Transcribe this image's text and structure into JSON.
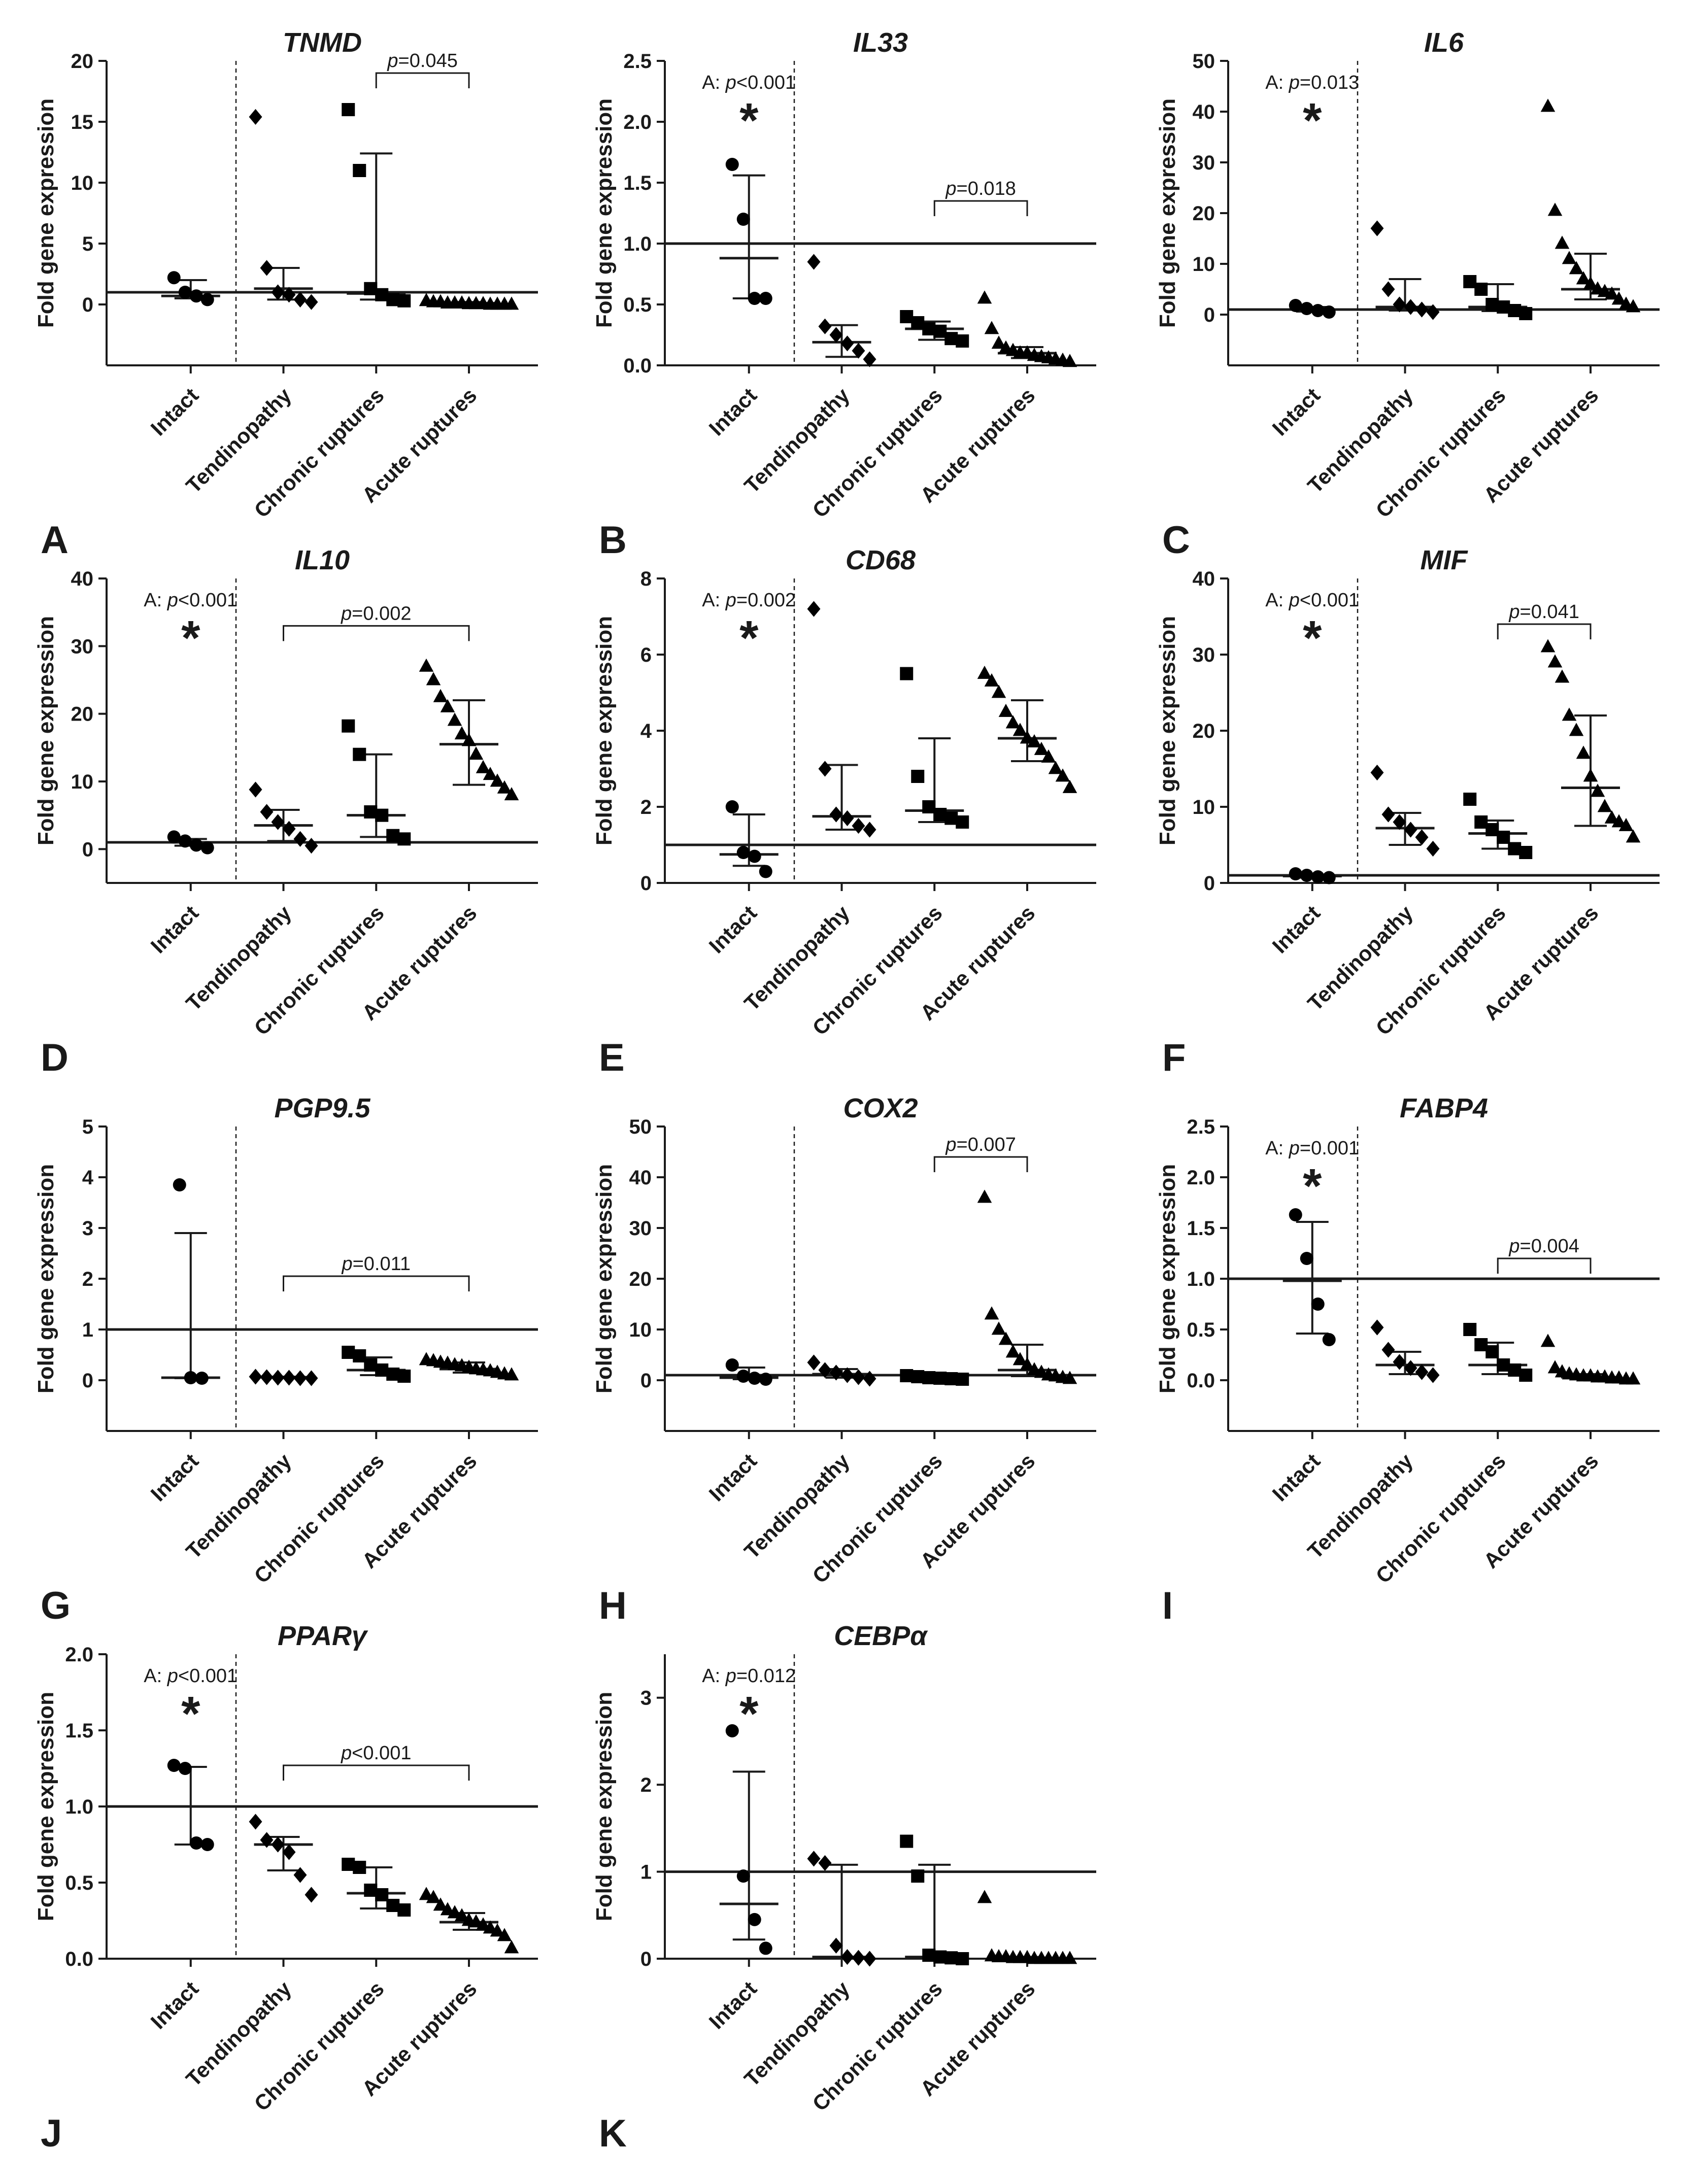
{
  "figure": {
    "ylabel": "Fold gene expression",
    "categories": [
      "Intact",
      "Tendinopathy",
      "Chronic ruptures",
      "Acute ruptures"
    ]
  },
  "chart_data": [
    {
      "panel": "A",
      "type": "scatter",
      "title": "TNMD",
      "ylim": [
        -5,
        20
      ],
      "yticks": [
        0,
        5,
        10,
        15,
        20
      ],
      "ytick_labels": [
        "0",
        "5",
        "10",
        "15",
        "20"
      ],
      "reference_line": 1,
      "anova": null,
      "bracket": {
        "from": 2,
        "to": 3,
        "label": "=0.045",
        "y": 19
      },
      "groups": [
        {
          "points": [
            2.2,
            1.0,
            0.7,
            0.4
          ],
          "median": 0.7,
          "q1": 0.5,
          "q3": 2.0
        },
        {
          "points": [
            15.4,
            3.0,
            1.0,
            0.8,
            0.4,
            0.2
          ],
          "median": 1.3,
          "q1": 0.4,
          "q3": 3.0
        },
        {
          "points": [
            16.0,
            11.0,
            1.3,
            0.8,
            0.4,
            0.3
          ],
          "median": 0.9,
          "q1": 0.4,
          "q3": 12.4
        },
        {
          "points": [
            0.3,
            0.2,
            0.2,
            0.1,
            0.1,
            0.1,
            0.05,
            0.05,
            0.05,
            0.0,
            0.0,
            0.0,
            0.0
          ],
          "median": 0.1,
          "q1": 0.0,
          "q3": 0.2
        }
      ]
    },
    {
      "panel": "B",
      "type": "scatter",
      "title": "IL33",
      "ylim": [
        0,
        2.5
      ],
      "yticks": [
        0,
        0.5,
        1.0,
        1.5,
        2.0,
        2.5
      ],
      "ytick_labels": [
        "0.0",
        "0.5",
        "1.0",
        "1.5",
        "2.0",
        "2.5"
      ],
      "reference_line": 1,
      "anova": "<0.001",
      "bracket": {
        "from": 2,
        "to": 3,
        "label": "=0.018",
        "y": 1.35
      },
      "groups": [
        {
          "points": [
            1.65,
            1.2,
            0.55,
            0.55
          ],
          "median": 0.88,
          "q1": 0.55,
          "q3": 1.56
        },
        {
          "points": [
            0.85,
            0.32,
            0.25,
            0.18,
            0.12,
            0.05
          ],
          "median": 0.19,
          "q1": 0.07,
          "q3": 0.33
        },
        {
          "points": [
            0.4,
            0.35,
            0.3,
            0.28,
            0.22,
            0.2
          ],
          "median": 0.3,
          "q1": 0.21,
          "q3": 0.36
        },
        {
          "points": [
            0.55,
            0.3,
            0.18,
            0.14,
            0.12,
            0.1,
            0.1,
            0.08,
            0.07,
            0.06,
            0.05,
            0.04,
            0.03
          ],
          "median": 0.1,
          "q1": 0.06,
          "q3": 0.15
        }
      ]
    },
    {
      "panel": "C",
      "type": "scatter",
      "title": "IL6",
      "ylim": [
        -10,
        50
      ],
      "yticks": [
        0,
        10,
        20,
        30,
        40,
        50
      ],
      "ytick_labels": [
        "0",
        "10",
        "20",
        "30",
        "40",
        "50"
      ],
      "reference_line": 1,
      "anova": "=0.013",
      "bracket": null,
      "groups": [
        {
          "points": [
            1.8,
            1.2,
            0.8,
            0.5
          ],
          "median": 1.0,
          "q1": 0.6,
          "q3": 1.5
        },
        {
          "points": [
            17.0,
            5.0,
            2.0,
            1.5,
            1.0,
            0.5
          ],
          "median": 1.5,
          "q1": 0.8,
          "q3": 7.0
        },
        {
          "points": [
            6.5,
            5.0,
            2.0,
            1.5,
            0.8,
            0.2
          ],
          "median": 1.5,
          "q1": 0.7,
          "q3": 6.0
        },
        {
          "points": [
            41.0,
            20.5,
            14.0,
            11.0,
            9.0,
            7.0,
            6.0,
            5.0,
            4.5,
            4.0,
            3.0,
            2.0,
            1.5
          ],
          "median": 5.0,
          "q1": 3.0,
          "q3": 12.0
        }
      ]
    },
    {
      "panel": "D",
      "type": "scatter",
      "title": "IL10",
      "ylim": [
        -5,
        40
      ],
      "yticks": [
        0,
        10,
        20,
        30,
        40
      ],
      "ytick_labels": [
        "0",
        "10",
        "20",
        "30",
        "40"
      ],
      "reference_line": 1,
      "anova": "<0.001",
      "bracket": {
        "from": 1,
        "to": 3,
        "label": "=0.002",
        "y": 33
      },
      "groups": [
        {
          "points": [
            1.8,
            1.2,
            0.6,
            0.2
          ],
          "median": 1.0,
          "q1": 0.5,
          "q3": 1.5
        },
        {
          "points": [
            8.8,
            5.5,
            4.0,
            3.0,
            1.5,
            0.5
          ],
          "median": 3.5,
          "q1": 1.2,
          "q3": 5.8
        },
        {
          "points": [
            18.2,
            14.0,
            5.5,
            5.0,
            2.0,
            1.5
          ],
          "median": 5.0,
          "q1": 1.8,
          "q3": 14.0
        },
        {
          "points": [
            27.0,
            25.0,
            22.5,
            21.0,
            19.0,
            17.0,
            16.0,
            14.0,
            12.0,
            11.0,
            10.0,
            9.0,
            8.0
          ],
          "median": 15.5,
          "q1": 9.5,
          "q3": 22.0
        }
      ]
    },
    {
      "panel": "E",
      "type": "scatter",
      "title": "CD68",
      "ylim": [
        0,
        8
      ],
      "yticks": [
        0,
        2,
        4,
        6,
        8
      ],
      "ytick_labels": [
        "0",
        "2",
        "4",
        "6",
        "8"
      ],
      "reference_line": 1,
      "anova": "=0.002",
      "bracket": null,
      "groups": [
        {
          "points": [
            2.0,
            0.8,
            0.7,
            0.3
          ],
          "median": 0.75,
          "q1": 0.45,
          "q3": 1.8
        },
        {
          "points": [
            7.2,
            3.0,
            1.8,
            1.7,
            1.5,
            1.4
          ],
          "median": 1.75,
          "q1": 1.4,
          "q3": 3.1
        },
        {
          "points": [
            5.5,
            2.8,
            2.0,
            1.8,
            1.7,
            1.6
          ],
          "median": 1.9,
          "q1": 1.6,
          "q3": 3.8
        },
        {
          "points": [
            5.5,
            5.3,
            5.0,
            4.5,
            4.2,
            4.0,
            3.8,
            3.7,
            3.5,
            3.3,
            3.0,
            2.8,
            2.5
          ],
          "median": 3.8,
          "q1": 3.2,
          "q3": 4.8
        }
      ]
    },
    {
      "panel": "F",
      "type": "scatter",
      "title": "MIF",
      "ylim": [
        0,
        40
      ],
      "yticks": [
        0,
        10,
        20,
        30,
        40
      ],
      "ytick_labels": [
        "0",
        "10",
        "20",
        "30",
        "40"
      ],
      "reference_line": 1,
      "anova": "<0.001",
      "bracket": {
        "from": 2,
        "to": 3,
        "label": "=0.041",
        "y": 34
      },
      "groups": [
        {
          "points": [
            1.2,
            1.0,
            0.8,
            0.7
          ],
          "median": 0.9,
          "q1": 0.7,
          "q3": 1.1
        },
        {
          "points": [
            14.5,
            9.0,
            8.0,
            7.0,
            6.0,
            4.5
          ],
          "median": 7.2,
          "q1": 5.0,
          "q3": 9.2
        },
        {
          "points": [
            11.0,
            8.0,
            7.0,
            6.0,
            4.5,
            4.0
          ],
          "median": 6.5,
          "q1": 4.5,
          "q3": 8.2
        },
        {
          "points": [
            31.0,
            29.0,
            27.0,
            22.0,
            20.0,
            17.0,
            14.0,
            12.0,
            10.0,
            8.5,
            8.0,
            7.5,
            6.0
          ],
          "median": 12.5,
          "q1": 7.5,
          "q3": 22.0
        }
      ]
    },
    {
      "panel": "G",
      "type": "scatter",
      "title": "PGP9.5",
      "ylim": [
        -1,
        5
      ],
      "yticks": [
        0,
        1,
        2,
        3,
        4,
        5
      ],
      "ytick_labels": [
        "0",
        "1",
        "2",
        "3",
        "4",
        "5"
      ],
      "reference_line": 1,
      "anova": null,
      "bracket": {
        "from": 1,
        "to": 3,
        "label": "=0.011",
        "y": 2.05
      },
      "groups": [
        {
          "points": [
            3.85,
            0.05,
            0.04
          ],
          "median": 0.05,
          "q1": 0.04,
          "q3": 2.9
        },
        {
          "points": [
            0.07,
            0.06,
            0.05,
            0.05,
            0.04,
            0.04
          ],
          "median": 0.06,
          "q1": 0.05,
          "q3": 0.07
        },
        {
          "points": [
            0.55,
            0.48,
            0.3,
            0.2,
            0.12,
            0.08
          ],
          "median": 0.2,
          "q1": 0.1,
          "q3": 0.45
        },
        {
          "points": [
            0.4,
            0.38,
            0.35,
            0.33,
            0.3,
            0.28,
            0.25,
            0.22,
            0.2,
            0.18,
            0.15,
            0.12,
            0.1
          ],
          "median": 0.22,
          "q1": 0.15,
          "q3": 0.35
        }
      ]
    },
    {
      "panel": "H",
      "type": "scatter",
      "title": "COX2",
      "ylim": [
        -10,
        50
      ],
      "yticks": [
        0,
        10,
        20,
        30,
        40,
        50
      ],
      "ytick_labels": [
        "0",
        "10",
        "20",
        "30",
        "40",
        "50"
      ],
      "reference_line": 1,
      "anova": null,
      "bracket": {
        "from": 2,
        "to": 3,
        "label": "=0.007",
        "y": 44
      },
      "groups": [
        {
          "points": [
            3.0,
            0.8,
            0.4,
            0.2
          ],
          "median": 0.5,
          "q1": 0.2,
          "q3": 2.5
        },
        {
          "points": [
            3.5,
            2.0,
            1.5,
            1.0,
            0.6,
            0.3
          ],
          "median": 1.2,
          "q1": 0.5,
          "q3": 2.2
        },
        {
          "points": [
            0.9,
            0.7,
            0.5,
            0.4,
            0.3,
            0.2
          ],
          "median": 0.5,
          "q1": 0.3,
          "q3": 0.8
        },
        {
          "points": [
            36.0,
            13.0,
            10.0,
            8.0,
            5.5,
            4.0,
            3.0,
            2.0,
            1.5,
            1.0,
            0.8,
            0.5,
            0.3
          ],
          "median": 2.0,
          "q1": 0.8,
          "q3": 7.0
        }
      ]
    },
    {
      "panel": "I",
      "type": "scatter",
      "title": "FABP4",
      "ylim": [
        -0.5,
        2.5
      ],
      "yticks": [
        0,
        0.5,
        1.0,
        1.5,
        2.0,
        2.5
      ],
      "ytick_labels": [
        "0.0",
        "0.5",
        "1.0",
        "1.5",
        "2.0",
        "2.5"
      ],
      "reference_line": 1,
      "anova": "=0.001",
      "bracket": {
        "from": 2,
        "to": 3,
        "label": "=0.004",
        "y": 1.2
      },
      "groups": [
        {
          "points": [
            1.63,
            1.2,
            0.75,
            0.4
          ],
          "median": 0.98,
          "q1": 0.46,
          "q3": 1.56
        },
        {
          "points": [
            0.52,
            0.3,
            0.18,
            0.12,
            0.08,
            0.05
          ],
          "median": 0.15,
          "q1": 0.06,
          "q3": 0.28
        },
        {
          "points": [
            0.5,
            0.35,
            0.28,
            0.15,
            0.1,
            0.05
          ],
          "median": 0.15,
          "q1": 0.06,
          "q3": 0.37
        },
        {
          "points": [
            0.38,
            0.12,
            0.08,
            0.06,
            0.05,
            0.04,
            0.04,
            0.03,
            0.03,
            0.02,
            0.02,
            0.01,
            0.01
          ],
          "median": 0.03,
          "q1": 0.01,
          "q3": 0.06
        }
      ]
    },
    {
      "panel": "J",
      "type": "scatter",
      "title": "PPARγ",
      "ylim": [
        0,
        2.0
      ],
      "yticks": [
        0,
        0.5,
        1.0,
        1.5,
        2.0
      ],
      "ytick_labels": [
        "0.0",
        "0.5",
        "1.0",
        "1.5",
        "2.0"
      ],
      "reference_line": 1,
      "anova": "<0.001",
      "bracket": {
        "from": 1,
        "to": 3,
        "label": "<0.001",
        "y": 1.27
      },
      "groups": [
        {
          "points": [
            1.27,
            1.25,
            0.76,
            0.75
          ],
          "median": 1.0,
          "q1": 0.75,
          "q3": 1.26
        },
        {
          "points": [
            0.9,
            0.78,
            0.75,
            0.7,
            0.55,
            0.42
          ],
          "median": 0.75,
          "q1": 0.58,
          "q3": 0.8
        },
        {
          "points": [
            0.62,
            0.6,
            0.45,
            0.42,
            0.35,
            0.32
          ],
          "median": 0.43,
          "q1": 0.33,
          "q3": 0.6
        },
        {
          "points": [
            0.42,
            0.4,
            0.35,
            0.32,
            0.3,
            0.28,
            0.25,
            0.24,
            0.22,
            0.2,
            0.18,
            0.15,
            0.07
          ],
          "median": 0.24,
          "q1": 0.19,
          "q3": 0.3
        }
      ]
    },
    {
      "panel": "K",
      "type": "scatter",
      "title": "CEBPα",
      "ylim": [
        0,
        3.5
      ],
      "yticks": [
        0,
        1,
        2,
        3
      ],
      "ytick_labels": [
        "0",
        "1",
        "2",
        "3"
      ],
      "reference_line": 1,
      "anova": "=0.012",
      "bracket": null,
      "groups": [
        {
          "points": [
            2.62,
            0.95,
            0.45,
            0.12
          ],
          "median": 0.63,
          "q1": 0.22,
          "q3": 2.15
        },
        {
          "points": [
            1.15,
            1.1,
            0.15,
            0.02,
            0.01,
            0.0
          ],
          "median": 0.02,
          "q1": 0.0,
          "q3": 1.08
        },
        {
          "points": [
            1.35,
            0.95,
            0.04,
            0.02,
            0.01,
            0.0
          ],
          "median": 0.02,
          "q1": 0.0,
          "q3": 1.08
        },
        {
          "points": [
            0.7,
            0.03,
            0.02,
            0.02,
            0.01,
            0.01,
            0.01,
            0.0,
            0.0,
            0.0,
            0.0,
            0.0,
            0.0
          ],
          "median": 0.01,
          "q1": 0.0,
          "q3": 0.02
        }
      ]
    }
  ]
}
